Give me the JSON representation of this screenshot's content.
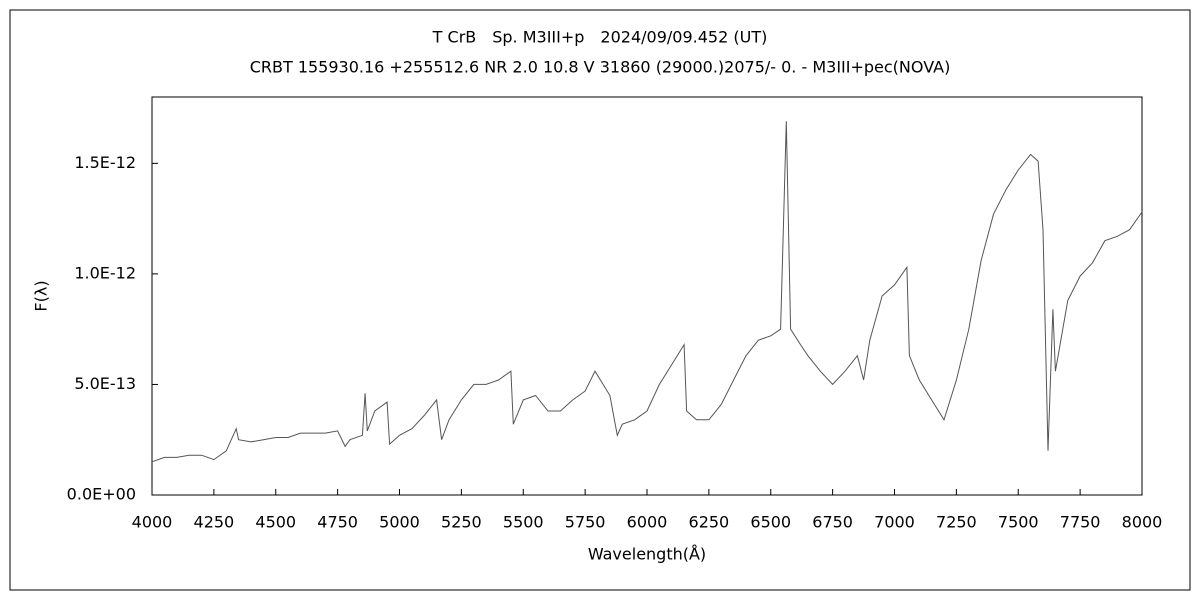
{
  "chart_data": {
    "type": "line",
    "title": "T CrB　Sp. M3III+p　2024/09/09.452 (UT)",
    "subtitle": "CRBT 155930.16 +255512.6 NR 2.0 10.8 V 31860 (29000.)2075/-  0. - M3III+pec(NOVA)",
    "xlabel": "Wavelength(Å)",
    "ylabel": "F(λ)",
    "x": [
      4000,
      4050,
      4100,
      4150,
      4200,
      4250,
      4300,
      4340,
      4350,
      4400,
      4450,
      4500,
      4550,
      4600,
      4650,
      4700,
      4750,
      4780,
      4800,
      4850,
      4861,
      4870,
      4900,
      4950,
      4960,
      5000,
      5050,
      5100,
      5150,
      5170,
      5200,
      5250,
      5300,
      5350,
      5400,
      5450,
      5460,
      5500,
      5550,
      5600,
      5650,
      5700,
      5750,
      5790,
      5850,
      5880,
      5900,
      5950,
      6000,
      6050,
      6100,
      6150,
      6160,
      6200,
      6250,
      6300,
      6350,
      6400,
      6450,
      6500,
      6540,
      6563,
      6580,
      6620,
      6650,
      6700,
      6750,
      6800,
      6850,
      6875,
      6900,
      6950,
      7000,
      7050,
      7060,
      7100,
      7150,
      7200,
      7250,
      7300,
      7350,
      7400,
      7450,
      7500,
      7550,
      7580,
      7600,
      7620,
      7640,
      7650,
      7700,
      7750,
      7800,
      7850,
      7900,
      7950,
      8000
    ],
    "series": [
      {
        "color": "#555555",
        "values": [
          1.5e-13,
          1.7e-13,
          1.7e-13,
          1.8e-13,
          1.8e-13,
          1.6e-13,
          2e-13,
          3e-13,
          2.5e-13,
          2.4e-13,
          2.5e-13,
          2.6e-13,
          2.6e-13,
          2.8e-13,
          2.8e-13,
          2.8e-13,
          2.9e-13,
          2.2e-13,
          2.5e-13,
          2.7e-13,
          4.6e-13,
          2.9e-13,
          3.8e-13,
          4.2e-13,
          2.3e-13,
          2.7e-13,
          3e-13,
          3.6e-13,
          4.3e-13,
          2.5e-13,
          3.4e-13,
          4.3e-13,
          5e-13,
          5e-13,
          5.2e-13,
          5.6e-13,
          3.2e-13,
          4.3e-13,
          4.5e-13,
          3.8e-13,
          3.8e-13,
          4.3e-13,
          4.7e-13,
          5.6e-13,
          4.5e-13,
          2.7e-13,
          3.2e-13,
          3.4e-13,
          3.8e-13,
          5e-13,
          5.9e-13,
          6.8e-13,
          3.8e-13,
          3.4e-13,
          3.4e-13,
          4.1e-13,
          5.2e-13,
          6.3e-13,
          7e-13,
          7.2e-13,
          7.5e-13,
          1.69e-12,
          7.5e-13,
          6.8e-13,
          6.3e-13,
          5.6e-13,
          5e-13,
          5.6e-13,
          6.3e-13,
          5.2e-13,
          7e-13,
          9e-13,
          9.5e-13,
          1.03e-12,
          6.3e-13,
          5.2e-13,
          4.3e-13,
          3.4e-13,
          5.2e-13,
          7.5e-13,
          1.06e-12,
          1.27e-12,
          1.38e-12,
          1.47e-12,
          1.54e-12,
          1.51e-12,
          1.2e-12,
          2e-13,
          8.4e-13,
          5.6e-13,
          8.8e-13,
          9.9e-13,
          1.05e-12,
          1.15e-12,
          1.17e-12,
          1.2e-12,
          1.28e-12
        ]
      }
    ],
    "xlim": [
      4000,
      8000
    ],
    "xticks": [
      4000,
      4250,
      4500,
      4750,
      5000,
      5250,
      5500,
      5750,
      6000,
      6250,
      6500,
      6750,
      7000,
      7250,
      7500,
      7750,
      8000
    ],
    "ylim": [
      0,
      1.8e-12
    ],
    "yticks": [
      {
        "value": 0,
        "label": "0.0E+00"
      },
      {
        "value": 5e-13,
        "label": "5.0E-13"
      },
      {
        "value": 1e-12,
        "label": "1.0E-12"
      },
      {
        "value": 1.5e-12,
        "label": "1.5E-12"
      }
    ],
    "grid": false
  }
}
